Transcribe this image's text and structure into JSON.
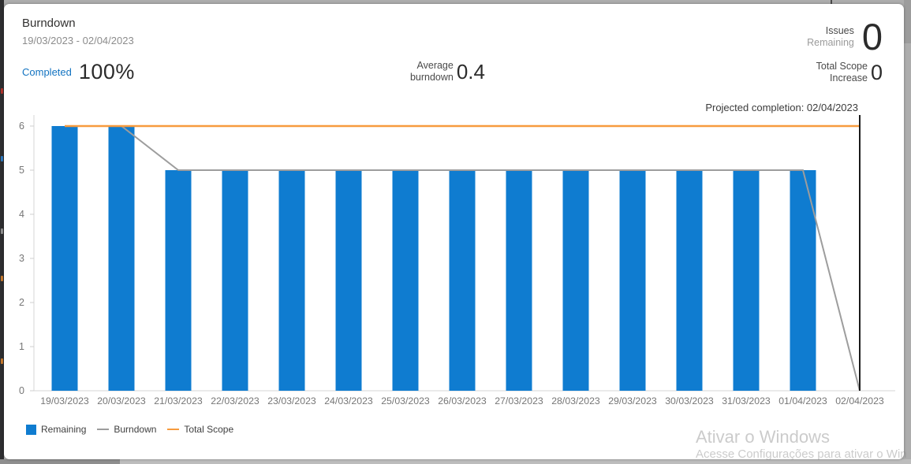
{
  "header": {
    "title": "Burndown",
    "date_range": "19/03/2023 - 02/04/2023",
    "completed_label": "Completed",
    "completed_value": "100%",
    "average_label_line1": "Average",
    "average_label_line2": "burndown",
    "average_value": "0.4",
    "issues_label_line1": "Issues",
    "issues_label_line2": "Remaining",
    "issues_value": "0",
    "scope_label_line1": "Total Scope",
    "scope_label_line2": "Increase",
    "scope_value": "0",
    "projected_completion": "Projected completion: 02/04/2023"
  },
  "chart_data": {
    "type": "bar",
    "title": "Burndown",
    "categories": [
      "19/03/2023",
      "20/03/2023",
      "21/03/2023",
      "22/03/2023",
      "23/03/2023",
      "24/03/2023",
      "25/03/2023",
      "26/03/2023",
      "27/03/2023",
      "28/03/2023",
      "29/03/2023",
      "30/03/2023",
      "31/03/2023",
      "01/04/2023",
      "02/04/2023"
    ],
    "series": [
      {
        "name": "Remaining",
        "type": "bar",
        "color": "#0f7cd0",
        "values": [
          6,
          6,
          5,
          5,
          5,
          5,
          5,
          5,
          5,
          5,
          5,
          5,
          5,
          5,
          0
        ]
      },
      {
        "name": "Burndown",
        "type": "line",
        "color": "#9d9d9d",
        "values": [
          6,
          6,
          5,
          5,
          5,
          5,
          5,
          5,
          5,
          5,
          5,
          5,
          5,
          5,
          0
        ]
      },
      {
        "name": "Total Scope",
        "type": "line",
        "color": "#f79b3e",
        "values": [
          6,
          6,
          6,
          6,
          6,
          6,
          6,
          6,
          6,
          6,
          6,
          6,
          6,
          6,
          6
        ]
      }
    ],
    "ylim": [
      0,
      6
    ],
    "yticks": [
      0,
      1,
      2,
      3,
      4,
      5,
      6
    ],
    "xlabel": "",
    "ylabel": "",
    "grid": false,
    "legend_position": "bottom-left",
    "annotations": [
      "Projected completion: 02/04/2023"
    ],
    "projected_line_x": "02/04/2023",
    "projected_line_color": "#1b1b1b",
    "axis_color": "#d4d4d4",
    "tick_label_color": "#767676"
  },
  "legend": {
    "items": [
      {
        "label": "Remaining",
        "color": "#0f7cd0",
        "marker": "square"
      },
      {
        "label": "Burndown",
        "color": "#9d9d9d",
        "marker": "line"
      },
      {
        "label": "Total Scope",
        "color": "#f79b3e",
        "marker": "line"
      }
    ]
  },
  "watermark": {
    "line1": "Ativar o Windows",
    "line2": "Acesse Configurações para ativar o Win"
  },
  "colors": {
    "bar": "#0f7cd0",
    "burndown_line": "#9d9d9d",
    "total_scope_line": "#f79b3e",
    "projected_line": "#1b1b1b",
    "completed_label": "#1273c1",
    "card_background": "#ffffff"
  }
}
